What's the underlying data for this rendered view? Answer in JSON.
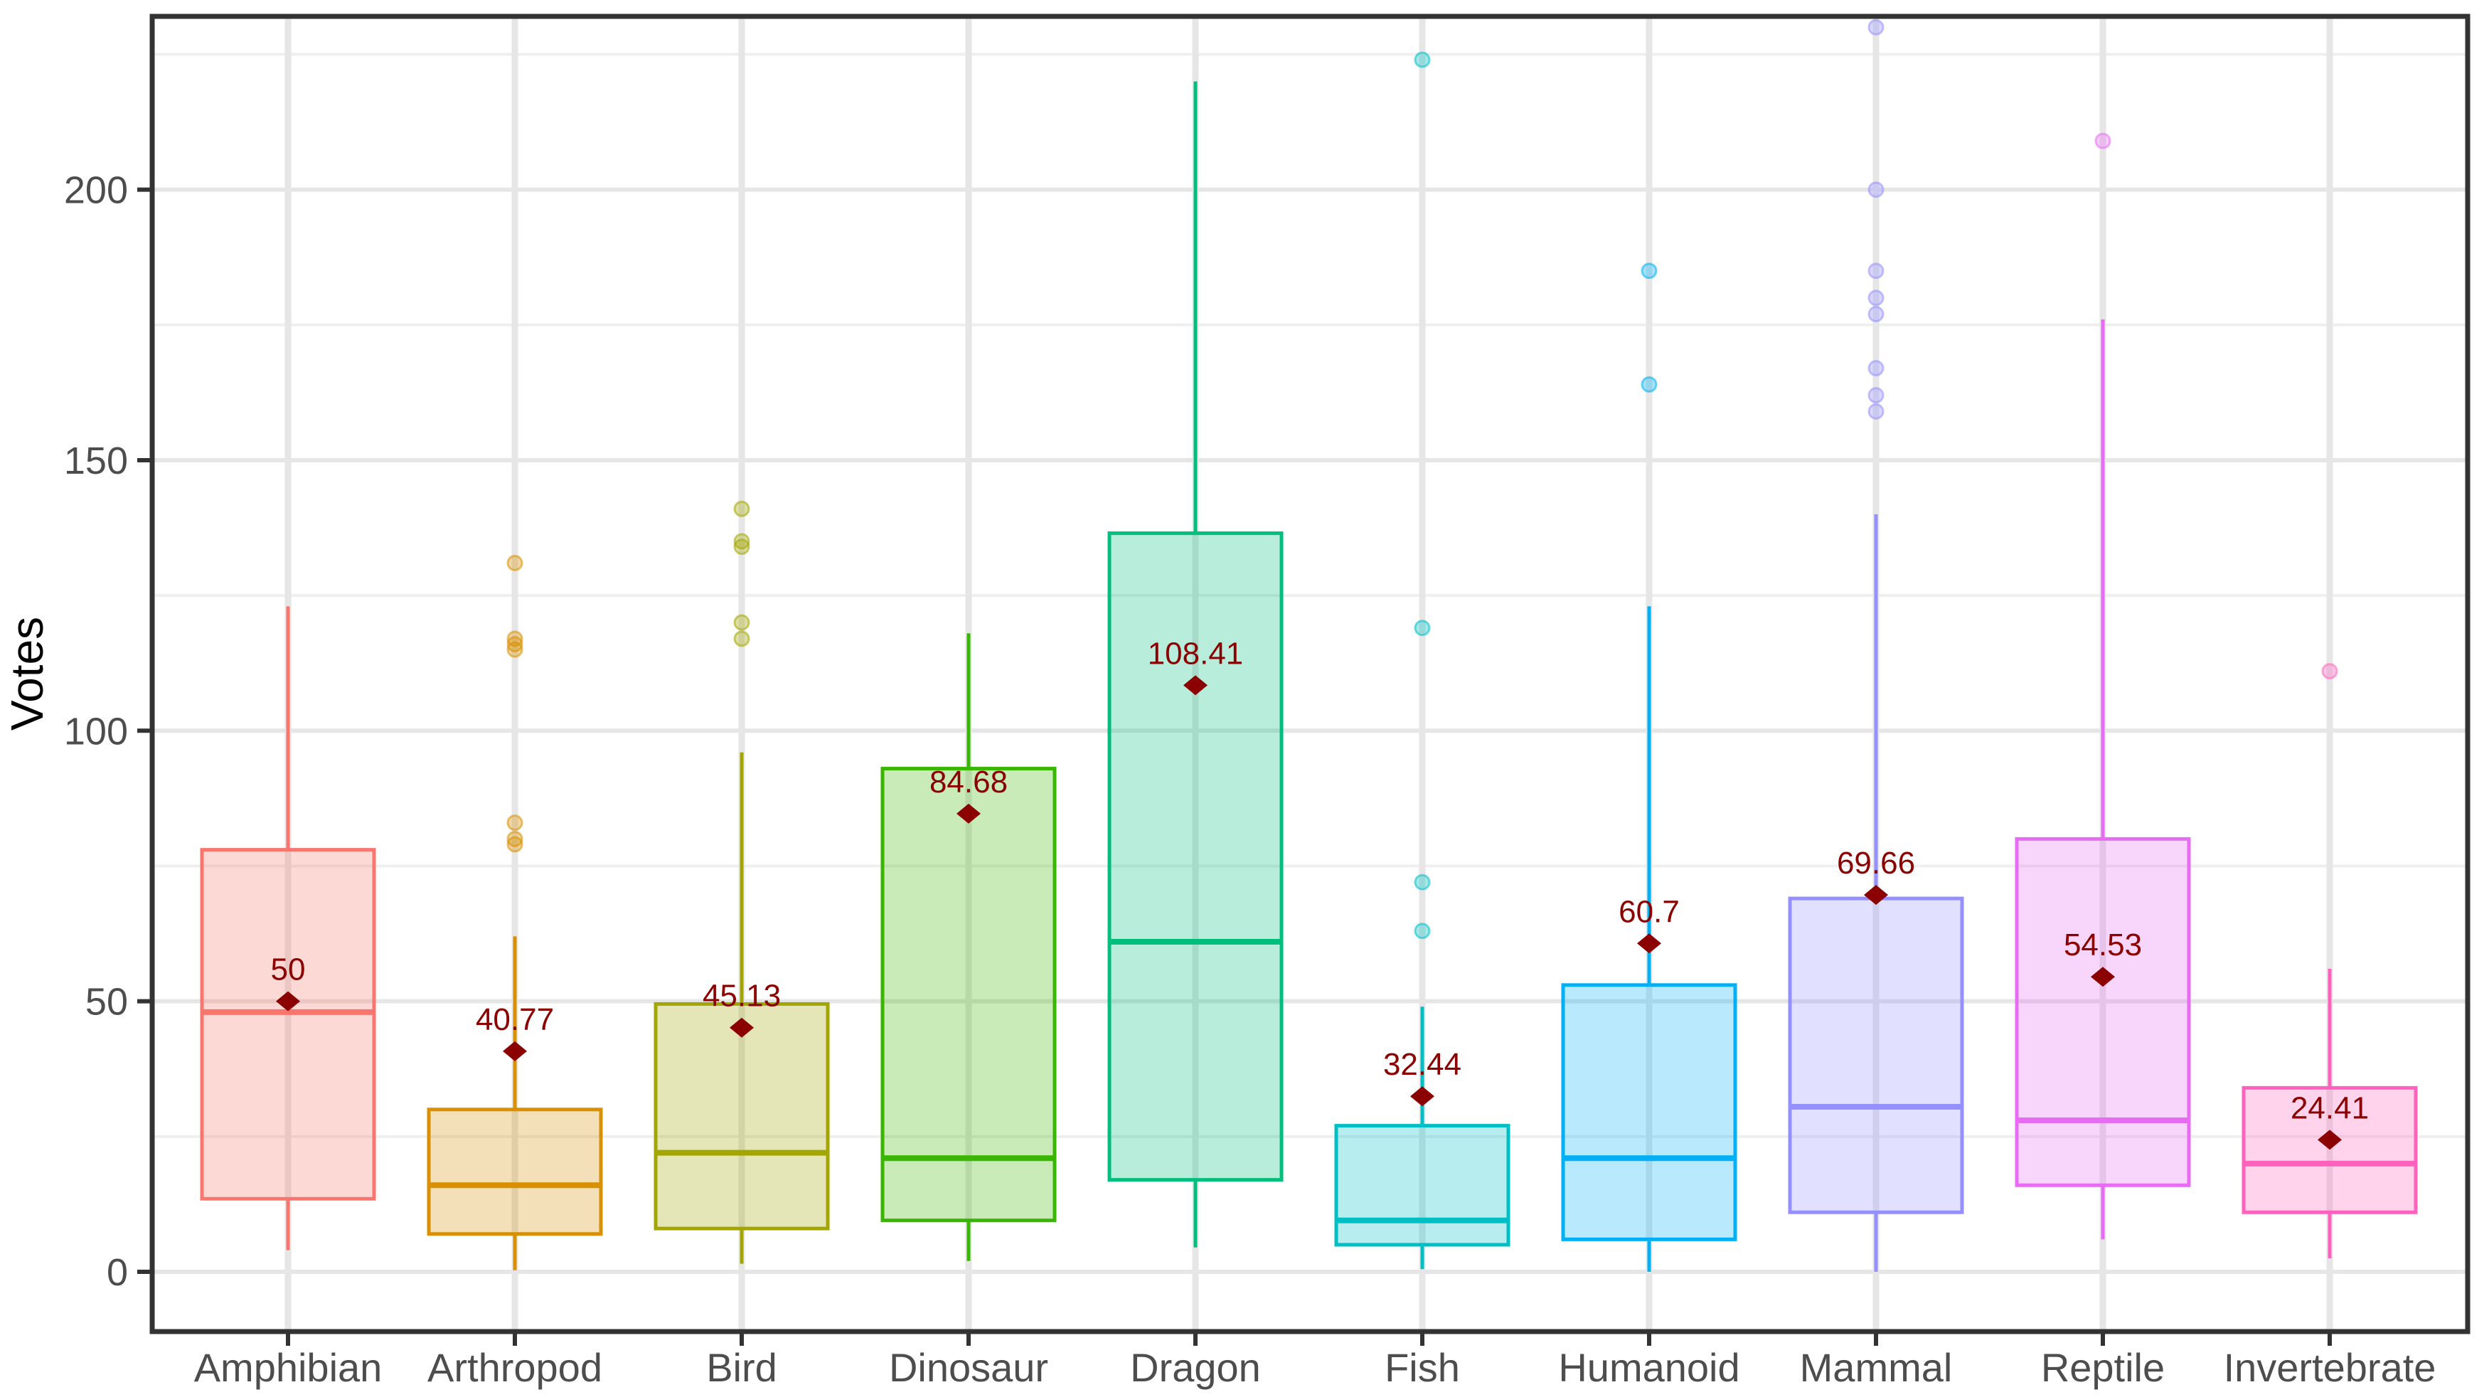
{
  "figure": {
    "background": "#ffffff",
    "panel_border_color": "#333333",
    "grid_major_color": "#e6e6e6",
    "grid_minor_color": "#efefef",
    "tick_color": "#333333",
    "axis_text_color": "#4d4d4d",
    "axis_title_color": "#000000",
    "mean_color": "#8B0000"
  },
  "chart_data": {
    "type": "boxplot",
    "title": "",
    "xlabel": "",
    "ylabel": "Votes",
    "ylim": [
      -11,
      231
    ],
    "grid": "on",
    "legend": "none",
    "y_ticks": [
      0,
      50,
      100,
      150,
      200
    ],
    "y_tick_labels": [
      "0",
      "50",
      "100",
      "150",
      "200"
    ],
    "y_minor_gridlines": [
      25,
      75,
      125,
      175,
      225
    ],
    "categories": [
      "Amphibian",
      "Arthropod",
      "Bird",
      "Dinosaur",
      "Dragon",
      "Fish",
      "Humanoid",
      "Mammal",
      "Reptile",
      "Invertebrate"
    ],
    "mean_marker": "diamond",
    "series": [
      {
        "category": "Amphibian",
        "color": "#F8766D",
        "whisker_low": 4,
        "q1": 13.5,
        "median": 48,
        "q3": 78,
        "whisker_high": 123,
        "outliers": [],
        "mean": 50,
        "mean_label": "50"
      },
      {
        "category": "Arthropod",
        "color": "#D89000",
        "whisker_low": 0.3,
        "q1": 7,
        "median": 16,
        "q3": 30,
        "whisker_high": 62,
        "outliers": [
          131,
          117,
          116,
          115,
          83,
          80,
          79
        ],
        "mean": 40.77,
        "mean_label": "40.77"
      },
      {
        "category": "Bird",
        "color": "#A3A500",
        "whisker_low": 1.5,
        "q1": 8,
        "median": 22,
        "q3": 49.5,
        "whisker_high": 96,
        "outliers": [
          141,
          135,
          134,
          120,
          117
        ],
        "mean": 45.13,
        "mean_label": "45.13"
      },
      {
        "category": "Dinosaur",
        "color": "#39B600",
        "whisker_low": 2,
        "q1": 9.5,
        "median": 21,
        "q3": 93,
        "whisker_high": 118,
        "outliers": [],
        "mean": 84.68,
        "mean_label": "84.68"
      },
      {
        "category": "Dragon",
        "color": "#00BF7D",
        "whisker_low": 4.5,
        "q1": 17,
        "median": 61,
        "q3": 136.5,
        "whisker_high": 220,
        "outliers": [],
        "mean": 108.41,
        "mean_label": "108.41"
      },
      {
        "category": "Fish",
        "color": "#00BFC4",
        "whisker_low": 0.5,
        "q1": 5,
        "median": 9.5,
        "q3": 27,
        "whisker_high": 49,
        "outliers": [
          224,
          119,
          72,
          63
        ],
        "mean": 32.44,
        "mean_label": "32.44"
      },
      {
        "category": "Humanoid",
        "color": "#00B0F6",
        "whisker_low": 0,
        "q1": 6,
        "median": 21,
        "q3": 53,
        "whisker_high": 123,
        "outliers": [
          185,
          164
        ],
        "mean": 60.7,
        "mean_label": "60.7"
      },
      {
        "category": "Mammal",
        "color": "#9590FF",
        "whisker_low": 0,
        "q1": 11,
        "median": 30.5,
        "q3": 69,
        "whisker_high": 140,
        "outliers": [
          230,
          200,
          185,
          180,
          177,
          167,
          162,
          159
        ],
        "mean": 69.66,
        "mean_label": "69.66"
      },
      {
        "category": "Reptile",
        "color": "#E76BF3",
        "whisker_low": 6,
        "q1": 16,
        "median": 28,
        "q3": 80,
        "whisker_high": 176,
        "outliers": [
          209
        ],
        "mean": 54.53,
        "mean_label": "54.53"
      },
      {
        "category": "Invertebrate",
        "color": "#FF62BC",
        "whisker_low": 2.5,
        "q1": 11,
        "median": 20,
        "q3": 34,
        "whisker_high": 56,
        "outliers": [
          111
        ],
        "mean": 24.41,
        "mean_label": "24.41"
      }
    ]
  }
}
